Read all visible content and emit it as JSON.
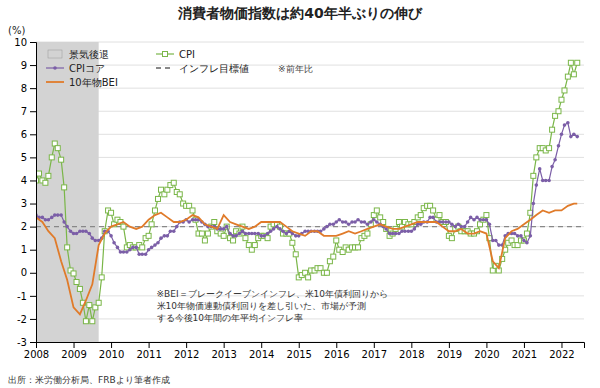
{
  "chart_data": {
    "type": "line",
    "title": "消費者物価指数は約40年半ぶりの伸び",
    "y_label": "(%)",
    "source": "出所：米労働分析局、FRBより筆者作成",
    "note": "※前年比",
    "annotations": [
      "※BEI＝ブレークイーブンインフレ、米10年債利回りから",
      "米10年物価連動債利回りを差し引いた、市場が予測",
      "する今後10年間の年平均インフレ率"
    ],
    "xlim": [
      2008.0,
      2022.6
    ],
    "xticks": [
      2008,
      2009,
      2010,
      2011,
      2012,
      2013,
      2014,
      2015,
      2016,
      2017,
      2018,
      2019,
      2020,
      2021,
      2022
    ],
    "ylim": [
      -3,
      10
    ],
    "yticks": [
      -3,
      -2,
      -1,
      0,
      1,
      2,
      3,
      4,
      5,
      6,
      7,
      8,
      9,
      10
    ],
    "grid": true,
    "shaded_regions": [
      {
        "name": "景気後退",
        "start": 2008.0,
        "end": 2009.67,
        "color": "#d3d3d3"
      }
    ],
    "series": [
      {
        "name": "CPI",
        "color": "#7ab648",
        "marker": "square",
        "x": [
          2008.0,
          2008.08,
          2008.17,
          2008.25,
          2008.33,
          2008.42,
          2008.5,
          2008.58,
          2008.67,
          2008.75,
          2008.83,
          2008.92,
          2009.0,
          2009.08,
          2009.17,
          2009.25,
          2009.33,
          2009.42,
          2009.5,
          2009.58,
          2009.67,
          2009.75,
          2009.83,
          2009.92,
          2010.0,
          2010.08,
          2010.17,
          2010.25,
          2010.33,
          2010.42,
          2010.5,
          2010.58,
          2010.67,
          2010.75,
          2010.83,
          2010.92,
          2011.0,
          2011.08,
          2011.17,
          2011.25,
          2011.33,
          2011.42,
          2011.5,
          2011.58,
          2011.67,
          2011.75,
          2011.83,
          2011.92,
          2012.0,
          2012.08,
          2012.17,
          2012.25,
          2012.33,
          2012.42,
          2012.5,
          2012.58,
          2012.67,
          2012.75,
          2012.83,
          2012.92,
          2013.0,
          2013.08,
          2013.17,
          2013.25,
          2013.33,
          2013.42,
          2013.5,
          2013.58,
          2013.67,
          2013.75,
          2013.83,
          2013.92,
          2014.0,
          2014.08,
          2014.17,
          2014.25,
          2014.33,
          2014.42,
          2014.5,
          2014.58,
          2014.67,
          2014.75,
          2014.83,
          2014.92,
          2015.0,
          2015.08,
          2015.17,
          2015.25,
          2015.33,
          2015.42,
          2015.5,
          2015.58,
          2015.67,
          2015.75,
          2015.83,
          2015.92,
          2016.0,
          2016.08,
          2016.17,
          2016.25,
          2016.33,
          2016.42,
          2016.5,
          2016.58,
          2016.67,
          2016.75,
          2016.83,
          2016.92,
          2017.0,
          2017.08,
          2017.17,
          2017.25,
          2017.33,
          2017.42,
          2017.5,
          2017.58,
          2017.67,
          2017.75,
          2017.83,
          2017.92,
          2018.0,
          2018.08,
          2018.17,
          2018.25,
          2018.33,
          2018.42,
          2018.5,
          2018.58,
          2018.67,
          2018.75,
          2018.83,
          2018.92,
          2019.0,
          2019.08,
          2019.17,
          2019.25,
          2019.33,
          2019.42,
          2019.5,
          2019.58,
          2019.67,
          2019.75,
          2019.83,
          2019.92,
          2020.0,
          2020.08,
          2020.17,
          2020.25,
          2020.33,
          2020.42,
          2020.5,
          2020.58,
          2020.67,
          2020.75,
          2020.83,
          2020.92,
          2021.0,
          2021.08,
          2021.17,
          2021.25,
          2021.33,
          2021.42,
          2021.5,
          2021.58,
          2021.67,
          2021.75,
          2021.83,
          2021.92,
          2022.0,
          2022.08,
          2022.17,
          2022.25,
          2022.33,
          2022.42
        ],
        "values": [
          4.0,
          4.3,
          4.0,
          3.9,
          4.2,
          5.0,
          5.6,
          5.4,
          4.9,
          3.7,
          1.1,
          0.1,
          -0.03,
          -0.4,
          -0.7,
          -1.3,
          -2.1,
          -1.4,
          -2.1,
          -1.5,
          -1.3,
          -0.2,
          1.8,
          2.7,
          2.6,
          2.1,
          2.3,
          2.2,
          2.0,
          1.1,
          1.2,
          1.1,
          1.1,
          1.2,
          1.1,
          1.5,
          1.6,
          2.1,
          2.7,
          3.2,
          3.6,
          3.4,
          3.6,
          3.8,
          3.9,
          3.5,
          3.4,
          3.0,
          2.9,
          2.9,
          2.7,
          2.3,
          1.7,
          1.7,
          1.4,
          1.7,
          2.0,
          2.2,
          1.8,
          1.7,
          1.6,
          2.0,
          1.5,
          1.4,
          1.8,
          1.7,
          2.0,
          1.5,
          1.2,
          1.0,
          1.2,
          1.5,
          1.6,
          1.6,
          1.5,
          2.0,
          2.1,
          2.1,
          2.0,
          1.7,
          1.7,
          1.7,
          1.3,
          0.8,
          -0.2,
          -0.1,
          0.0,
          -0.2,
          0.1,
          0.1,
          0.2,
          0.2,
          0.0,
          0.0,
          0.5,
          0.7,
          1.4,
          1.0,
          0.9,
          1.1,
          1.0,
          1.1,
          1.1,
          1.1,
          1.5,
          1.6,
          1.7,
          2.1,
          2.5,
          2.7,
          2.4,
          2.2,
          1.9,
          1.6,
          1.7,
          1.9,
          2.2,
          2.0,
          2.2,
          2.1,
          2.1,
          2.2,
          2.4,
          2.5,
          2.8,
          2.9,
          2.9,
          2.7,
          2.3,
          2.5,
          2.2,
          2.2,
          1.6,
          1.5,
          1.9,
          2.0,
          1.8,
          1.8,
          1.8,
          1.7,
          1.7,
          1.8,
          2.1,
          2.3,
          2.5,
          1.5,
          0.1,
          0.3,
          0.1,
          0.6,
          1.0,
          1.3,
          1.4,
          1.2,
          1.2,
          1.4,
          1.4,
          1.7,
          2.6,
          4.2,
          5.0,
          5.4,
          5.4,
          5.3,
          5.4,
          6.2,
          6.8,
          7.0,
          7.5,
          7.9,
          8.5,
          9.1,
          8.6,
          9.1
        ]
      },
      {
        "name": "CPIコア",
        "color": "#7b5ea7",
        "marker": "circle",
        "x": [
          2008.0,
          2008.08,
          2008.17,
          2008.25,
          2008.33,
          2008.42,
          2008.5,
          2008.58,
          2008.67,
          2008.75,
          2008.83,
          2008.92,
          2009.0,
          2009.08,
          2009.17,
          2009.25,
          2009.33,
          2009.42,
          2009.5,
          2009.58,
          2009.67,
          2009.75,
          2009.83,
          2009.92,
          2010.0,
          2010.08,
          2010.17,
          2010.25,
          2010.33,
          2010.42,
          2010.5,
          2010.58,
          2010.67,
          2010.75,
          2010.83,
          2010.92,
          2011.0,
          2011.08,
          2011.17,
          2011.25,
          2011.33,
          2011.42,
          2011.5,
          2011.58,
          2011.67,
          2011.75,
          2011.83,
          2011.92,
          2012.0,
          2012.08,
          2012.17,
          2012.25,
          2012.33,
          2012.42,
          2012.5,
          2012.58,
          2012.67,
          2012.75,
          2012.83,
          2012.92,
          2013.0,
          2013.08,
          2013.17,
          2013.25,
          2013.33,
          2013.42,
          2013.5,
          2013.58,
          2013.67,
          2013.75,
          2013.83,
          2013.92,
          2014.0,
          2014.08,
          2014.17,
          2014.25,
          2014.33,
          2014.42,
          2014.5,
          2014.58,
          2014.67,
          2014.75,
          2014.83,
          2014.92,
          2015.0,
          2015.08,
          2015.17,
          2015.25,
          2015.33,
          2015.42,
          2015.5,
          2015.58,
          2015.67,
          2015.75,
          2015.83,
          2015.92,
          2016.0,
          2016.08,
          2016.17,
          2016.25,
          2016.33,
          2016.42,
          2016.5,
          2016.58,
          2016.67,
          2016.75,
          2016.83,
          2016.92,
          2017.0,
          2017.08,
          2017.17,
          2017.25,
          2017.33,
          2017.42,
          2017.5,
          2017.58,
          2017.67,
          2017.75,
          2017.83,
          2017.92,
          2018.0,
          2018.08,
          2018.17,
          2018.25,
          2018.33,
          2018.42,
          2018.5,
          2018.58,
          2018.67,
          2018.75,
          2018.83,
          2018.92,
          2019.0,
          2019.08,
          2019.17,
          2019.25,
          2019.33,
          2019.42,
          2019.5,
          2019.58,
          2019.67,
          2019.75,
          2019.83,
          2019.92,
          2020.0,
          2020.08,
          2020.17,
          2020.25,
          2020.33,
          2020.42,
          2020.5,
          2020.58,
          2020.67,
          2020.75,
          2020.83,
          2020.92,
          2021.0,
          2021.08,
          2021.17,
          2021.25,
          2021.33,
          2021.42,
          2021.5,
          2021.58,
          2021.67,
          2021.75,
          2021.83,
          2021.92,
          2022.0,
          2022.08,
          2022.17,
          2022.25,
          2022.33,
          2022.42
        ],
        "values": [
          2.5,
          2.4,
          2.4,
          2.3,
          2.3,
          2.4,
          2.5,
          2.5,
          2.5,
          2.2,
          2.0,
          1.8,
          1.7,
          1.7,
          1.8,
          1.8,
          1.8,
          1.7,
          1.5,
          1.4,
          1.4,
          1.5,
          1.8,
          1.8,
          1.6,
          1.3,
          1.1,
          0.9,
          0.9,
          0.9,
          1.0,
          1.1,
          1.1,
          0.8,
          0.8,
          0.8,
          1.0,
          1.1,
          1.2,
          1.3,
          1.5,
          1.6,
          1.6,
          1.8,
          1.8,
          2.0,
          2.2,
          2.2,
          2.3,
          2.2,
          2.3,
          2.3,
          2.3,
          2.2,
          2.1,
          2.0,
          2.0,
          2.0,
          1.9,
          1.9,
          1.9,
          2.0,
          1.7,
          1.6,
          1.6,
          1.7,
          1.8,
          1.7,
          1.7,
          1.7,
          1.7,
          1.7,
          1.6,
          1.6,
          1.7,
          1.8,
          1.9,
          2.0,
          1.9,
          1.8,
          1.7,
          1.8,
          1.7,
          1.6,
          1.6,
          1.7,
          1.8,
          1.8,
          1.8,
          1.8,
          1.8,
          1.8,
          1.9,
          2.0,
          2.1,
          2.1,
          2.2,
          2.3,
          2.2,
          2.2,
          2.1,
          2.2,
          2.2,
          2.3,
          2.2,
          2.2,
          2.1,
          2.2,
          2.3,
          2.2,
          2.1,
          2.0,
          1.9,
          1.7,
          1.7,
          1.7,
          1.7,
          1.8,
          1.8,
          1.8,
          1.8,
          1.9,
          2.1,
          2.1,
          2.2,
          2.2,
          2.4,
          2.4,
          2.2,
          2.2,
          2.2,
          2.2,
          2.2,
          2.1,
          2.0,
          2.1,
          2.0,
          2.0,
          2.2,
          2.4,
          2.3,
          2.4,
          2.3,
          2.3,
          2.3,
          2.1,
          1.4,
          1.4,
          1.2,
          1.2,
          1.6,
          1.7,
          1.7,
          1.7,
          1.6,
          1.6,
          1.4,
          1.3,
          1.6,
          3.0,
          3.8,
          4.5,
          4.0,
          4.0,
          4.0,
          4.6,
          4.9,
          5.5,
          6.0,
          6.4,
          6.5,
          5.9,
          6.0,
          5.9
        ]
      },
      {
        "name": "インフレ目標値",
        "color": "#888888",
        "type": "hline",
        "line_style": "dashed",
        "values": [
          2.0
        ]
      },
      {
        "name": "10年物BEI",
        "color": "#e07b2a",
        "x": [
          2008.0,
          2008.17,
          2008.33,
          2008.5,
          2008.67,
          2008.83,
          2009.0,
          2009.17,
          2009.33,
          2009.5,
          2009.67,
          2009.83,
          2010.0,
          2010.17,
          2010.33,
          2010.5,
          2010.67,
          2010.83,
          2011.0,
          2011.17,
          2011.33,
          2011.5,
          2011.67,
          2011.83,
          2012.0,
          2012.17,
          2012.33,
          2012.5,
          2012.67,
          2012.83,
          2013.0,
          2013.17,
          2013.33,
          2013.5,
          2013.67,
          2013.83,
          2014.0,
          2014.17,
          2014.33,
          2014.5,
          2014.67,
          2014.83,
          2015.0,
          2015.17,
          2015.33,
          2015.5,
          2015.67,
          2015.83,
          2016.0,
          2016.17,
          2016.33,
          2016.5,
          2016.67,
          2016.83,
          2017.0,
          2017.17,
          2017.33,
          2017.5,
          2017.67,
          2017.83,
          2018.0,
          2018.17,
          2018.33,
          2018.5,
          2018.67,
          2018.83,
          2019.0,
          2019.17,
          2019.33,
          2019.5,
          2019.67,
          2019.83,
          2020.0,
          2020.17,
          2020.33,
          2020.5,
          2020.67,
          2020.83,
          2021.0,
          2021.17,
          2021.33,
          2021.5,
          2021.67,
          2021.83,
          2022.0,
          2022.17,
          2022.33,
          2022.42
        ],
        "values": [
          2.4,
          2.2,
          1.8,
          1.5,
          0.5,
          -0.3,
          -1.5,
          -1.8,
          -1.2,
          -0.5,
          1.2,
          1.7,
          2.0,
          2.1,
          2.2,
          2.0,
          1.9,
          2.0,
          2.3,
          2.5,
          2.6,
          2.4,
          2.2,
          2.2,
          2.3,
          2.5,
          2.4,
          2.1,
          2.0,
          1.9,
          2.5,
          2.2,
          2.1,
          2.0,
          1.9,
          2.0,
          2.2,
          2.2,
          2.2,
          2.2,
          2.0,
          1.8,
          1.7,
          1.6,
          1.8,
          1.8,
          1.6,
          1.6,
          1.6,
          1.7,
          1.8,
          1.7,
          1.8,
          1.9,
          2.0,
          2.1,
          2.0,
          1.9,
          1.9,
          2.0,
          2.1,
          2.2,
          2.2,
          2.2,
          2.2,
          2.0,
          1.8,
          1.8,
          1.9,
          1.7,
          1.7,
          1.8,
          1.7,
          0.5,
          0.2,
          1.5,
          1.8,
          1.9,
          2.1,
          2.3,
          2.5,
          2.7,
          2.6,
          2.7,
          2.7,
          2.9,
          3.0,
          3.0
        ]
      }
    ]
  }
}
